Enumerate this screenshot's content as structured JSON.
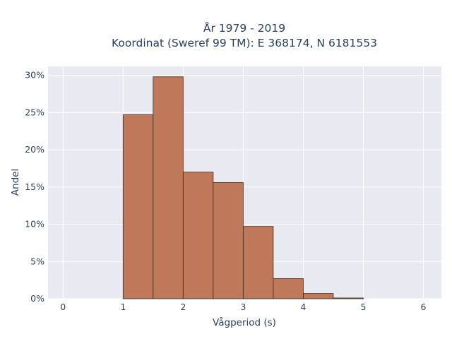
{
  "chart_data": {
    "type": "bar",
    "title_lines": [
      "År 1979 - 2019",
      "Koordinat (Sweref 99 TM): E 368174, N 6181553"
    ],
    "xlabel": "Vågperiod (s)",
    "ylabel": "Andel",
    "xlim": [
      -0.25,
      6.3
    ],
    "ylim": [
      0,
      31.2
    ],
    "x_ticks": [
      0,
      1,
      2,
      3,
      4,
      5,
      6
    ],
    "y_ticks": [
      0,
      5,
      10,
      15,
      20,
      25,
      30
    ],
    "y_tick_suffix": "%",
    "grid": true,
    "bin_width": 0.5,
    "bins": [
      {
        "start": 1.0,
        "value": 24.7
      },
      {
        "start": 1.5,
        "value": 29.8
      },
      {
        "start": 2.0,
        "value": 17.0
      },
      {
        "start": 2.5,
        "value": 15.6
      },
      {
        "start": 3.0,
        "value": 9.7
      },
      {
        "start": 3.5,
        "value": 2.7
      },
      {
        "start": 4.0,
        "value": 0.7
      },
      {
        "start": 4.5,
        "value": 0.1
      }
    ],
    "colors": {
      "bar": "#c0785a",
      "plot_background": "#e8e9f1",
      "paper_background": "#ffffff"
    }
  }
}
